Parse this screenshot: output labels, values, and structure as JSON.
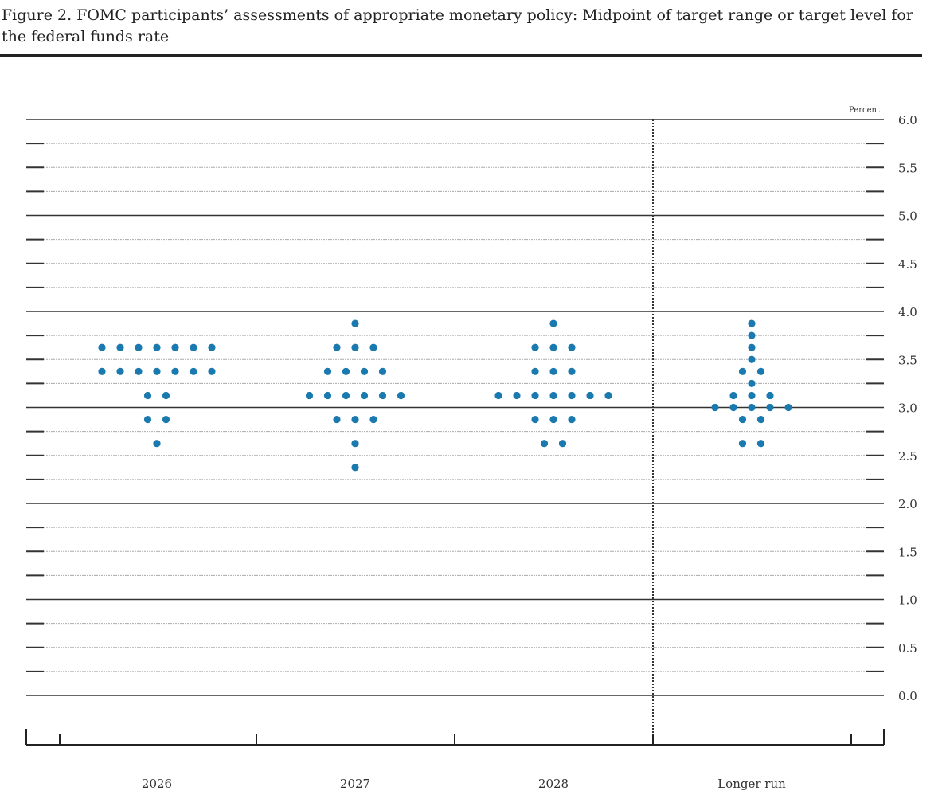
{
  "chart_data": {
    "type": "scatter",
    "title": "Figure 2. FOMC participants’ assessments of appropriate monetary policy: Midpoint of target range or target level for the federal funds rate",
    "ylabel": "Percent",
    "ylim": [
      0,
      6
    ],
    "yticks": [
      "6.0",
      "5.5",
      "5.0",
      "4.5",
      "4.0",
      "3.5",
      "3.0",
      "2.5",
      "2.0",
      "1.5",
      "1.0",
      "0.5",
      "0.0"
    ],
    "categories": [
      "2026",
      "2027",
      "2028",
      "Longer run"
    ],
    "dot_color": "#1a7ab0",
    "series": [
      {
        "category": "2026",
        "points": [
          {
            "y": 3.625,
            "n": 7
          },
          {
            "y": 3.375,
            "n": 7
          },
          {
            "y": 3.125,
            "n": 2
          },
          {
            "y": 2.875,
            "n": 2
          },
          {
            "y": 2.625,
            "n": 1
          }
        ]
      },
      {
        "category": "2027",
        "points": [
          {
            "y": 3.875,
            "n": 1
          },
          {
            "y": 3.625,
            "n": 3
          },
          {
            "y": 3.375,
            "n": 4
          },
          {
            "y": 3.125,
            "n": 6
          },
          {
            "y": 2.875,
            "n": 3
          },
          {
            "y": 2.625,
            "n": 1
          },
          {
            "y": 2.375,
            "n": 1
          }
        ]
      },
      {
        "category": "2028",
        "points": [
          {
            "y": 3.875,
            "n": 1
          },
          {
            "y": 3.625,
            "n": 3
          },
          {
            "y": 3.375,
            "n": 3
          },
          {
            "y": 3.125,
            "n": 7
          },
          {
            "y": 2.875,
            "n": 3
          },
          {
            "y": 2.625,
            "n": 2
          }
        ]
      },
      {
        "category": "Longer run",
        "points": [
          {
            "y": 3.875,
            "n": 1
          },
          {
            "y": 3.75,
            "n": 1
          },
          {
            "y": 3.625,
            "n": 1
          },
          {
            "y": 3.5,
            "n": 1
          },
          {
            "y": 3.375,
            "n": 2
          },
          {
            "y": 3.25,
            "n": 1
          },
          {
            "y": 3.125,
            "n": 3
          },
          {
            "y": 3.0,
            "n": 5
          },
          {
            "y": 2.875,
            "n": 2
          },
          {
            "y": 2.625,
            "n": 2
          }
        ]
      }
    ]
  }
}
